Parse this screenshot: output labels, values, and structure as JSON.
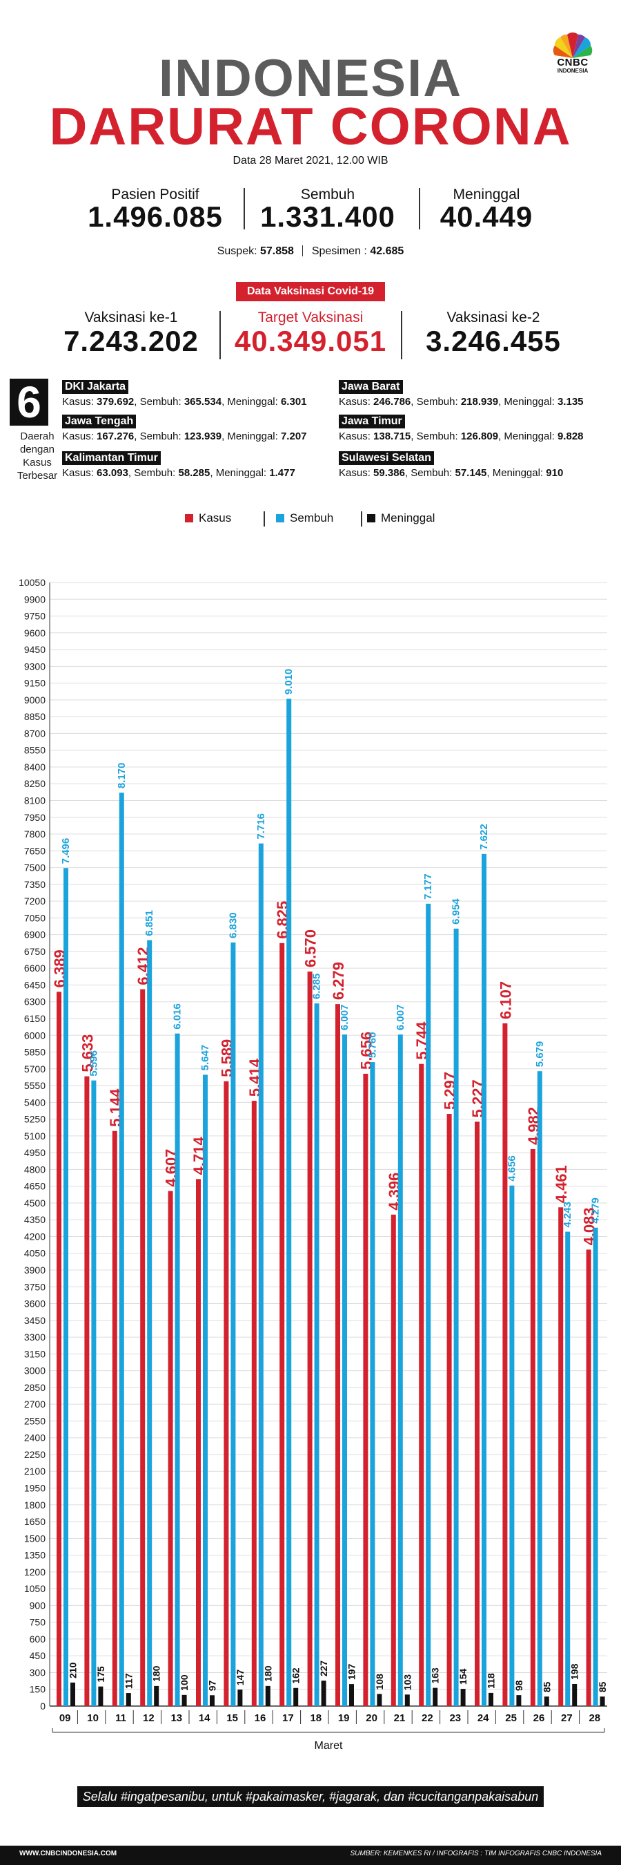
{
  "logo": {
    "name": "CNBC",
    "sub": "INDONESIA"
  },
  "header": {
    "title_line1": "INDONESIA",
    "title_line2": "DARURAT CORONA",
    "date": "Data 28 Maret 2021, 12.00 WIB"
  },
  "stats": [
    {
      "label": "Pasien Positif",
      "value": "1.496.085"
    },
    {
      "label": "Sembuh",
      "value": "1.331.400"
    },
    {
      "label": "Meninggal",
      "value": "40.449"
    }
  ],
  "suspek": {
    "label": "Suspek:",
    "value": "57.858",
    "spesimen_label": "Spesimen :",
    "spesimen_value": "42.685"
  },
  "vaksin": {
    "badge": "Data Vaksinasi Covid-19",
    "items": [
      {
        "label": "Vaksinasi ke-1",
        "value": "7.243.202"
      },
      {
        "label": "Target Vaksinasi",
        "value": "40.349.051"
      },
      {
        "label": "Vaksinasi ke-2",
        "value": "3.246.455"
      }
    ]
  },
  "regions": {
    "count": "6",
    "side_label": [
      "Daerah",
      "dengan",
      "Kasus",
      "Terbesar"
    ],
    "list": [
      {
        "name": "DKI Jakarta",
        "kasus": "379.692",
        "sembuh": "365.534",
        "meninggal": "6.301"
      },
      {
        "name": "Jawa Barat",
        "kasus": "246.786",
        "sembuh": "218.939",
        "meninggal": "3.135"
      },
      {
        "name": "Jawa Tengah",
        "kasus": "167.276",
        "sembuh": "123.939",
        "meninggal": "7.207"
      },
      {
        "name": "Jawa Timur",
        "kasus": "138.715",
        "sembuh": "126.809",
        "meninggal": "9.828"
      },
      {
        "name": "Kalimantan Timur",
        "kasus": "63.093",
        "sembuh": "58.285",
        "meninggal": "1.477"
      },
      {
        "name": "Sulawesi Selatan",
        "kasus": "59.386",
        "sembuh": "57.145",
        "meninggal": "910"
      }
    ],
    "labels": {
      "kasus": "Kasus:",
      "sembuh": "Sembuh:",
      "meninggal": "Meninggal:"
    }
  },
  "colors": {
    "kasus": "#d4212e",
    "sembuh": "#1ba3dc",
    "meninggal": "#111111",
    "grid": "#dddddd"
  },
  "chart_data": {
    "type": "bar",
    "title": "",
    "xlabel": "Maret",
    "ylabel": "",
    "ylim": [
      0,
      10050
    ],
    "ytick_step": 150,
    "legend_placement": "top",
    "grid": true,
    "categories": [
      "09",
      "10",
      "11",
      "12",
      "13",
      "14",
      "15",
      "16",
      "17",
      "18",
      "19",
      "20",
      "21",
      "22",
      "23",
      "24",
      "25",
      "26",
      "27",
      "28"
    ],
    "series": [
      {
        "name": "Kasus",
        "values": [
          6389,
          5633,
          5144,
          6412,
          4607,
          4714,
          5589,
          5414,
          6825,
          6570,
          6279,
          5656,
          4396,
          5744,
          5297,
          5227,
          6107,
          4982,
          4461,
          4083
        ],
        "labels": [
          "6.389",
          "5.633",
          "5.144",
          "6.412",
          "4.607",
          "4.714",
          "5.589",
          "5.414",
          "6.825",
          "6.570",
          "6.279",
          "5.656",
          "4.396",
          "5.744",
          "5.297",
          "5.227",
          "6.107",
          "4.982",
          "4.461",
          "4.083"
        ]
      },
      {
        "name": "Sembuh",
        "values": [
          7496,
          5596,
          8170,
          6851,
          6016,
          5647,
          6830,
          7716,
          9010,
          6285,
          6007,
          5760,
          6007,
          7177,
          6954,
          7622,
          4656,
          5679,
          4243,
          4279
        ],
        "labels": [
          "7.496",
          "5.596",
          "8.170",
          "6.851",
          "6.016",
          "5.647",
          "6.830",
          "7.716",
          "9.010",
          "6.285",
          "6.007",
          "5.760",
          "6.007",
          "7.177",
          "6.954",
          "7.622",
          "4.656",
          "5.679",
          "4.243",
          "4.279"
        ]
      },
      {
        "name": "Meninggal",
        "values": [
          210,
          175,
          117,
          180,
          100,
          97,
          147,
          180,
          162,
          227,
          197,
          108,
          103,
          163,
          154,
          118,
          98,
          85,
          198,
          85
        ],
        "labels": [
          "210",
          "175",
          "117",
          "180",
          "100",
          "97",
          "147",
          "180",
          "162",
          "227",
          "197",
          "108",
          "103",
          "163",
          "154",
          "118",
          "98",
          "85",
          "198",
          "85"
        ]
      }
    ]
  },
  "footer": {
    "message": "Selalu #ingatpesanibu, untuk #pakaimasker, #jagarak, dan #cucitanganpakaisabun",
    "site": "WWW.CNBCINDONESIA.COM",
    "source": "SUMBER: KEMENKES RI / INFOGRAFIS : TIM INFOGRAFIS CNBC INDONESIA"
  }
}
